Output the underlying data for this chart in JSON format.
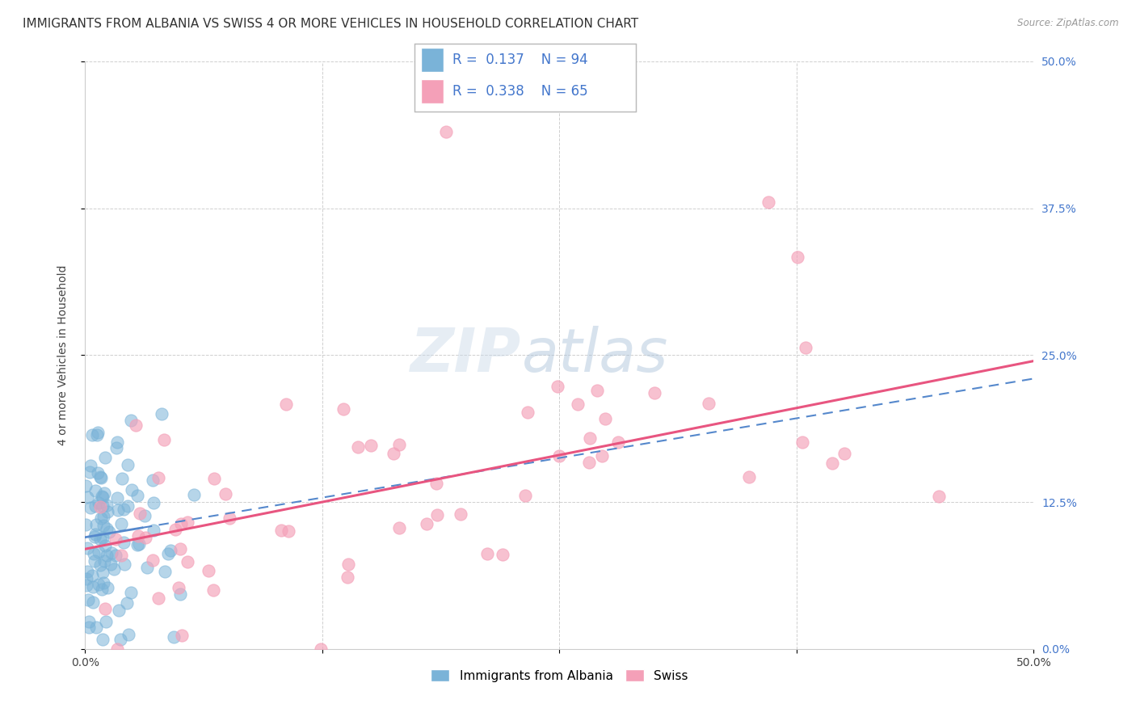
{
  "title": "IMMIGRANTS FROM ALBANIA VS SWISS 4 OR MORE VEHICLES IN HOUSEHOLD CORRELATION CHART",
  "source": "Source: ZipAtlas.com",
  "ylabel": "4 or more Vehicles in Household",
  "legend_label1": "Immigrants from Albania",
  "legend_label2": "Swiss",
  "r1": 0.137,
  "n1": 94,
  "r2": 0.338,
  "n2": 65,
  "xlim": [
    0.0,
    50.0
  ],
  "ylim": [
    0.0,
    50.0
  ],
  "ytick_labels_right": [
    "0.0%",
    "12.5%",
    "25.0%",
    "37.5%",
    "50.0%"
  ],
  "watermark_zip": "ZIP",
  "watermark_atlas": "atlas",
  "bg_color": "#ffffff",
  "color_blue": "#7ab3d8",
  "color_blue_line": "#5588cc",
  "color_pink": "#f4a0b8",
  "color_pink_line": "#e85580",
  "grid_color": "#bbbbbb",
  "title_fontsize": 11,
  "axis_label_fontsize": 10,
  "tick_fontsize": 10,
  "legend_fontsize": 12,
  "blue_line_intercept": 9.5,
  "blue_line_slope": 0.27,
  "pink_line_intercept": 8.5,
  "pink_line_slope": 0.32
}
